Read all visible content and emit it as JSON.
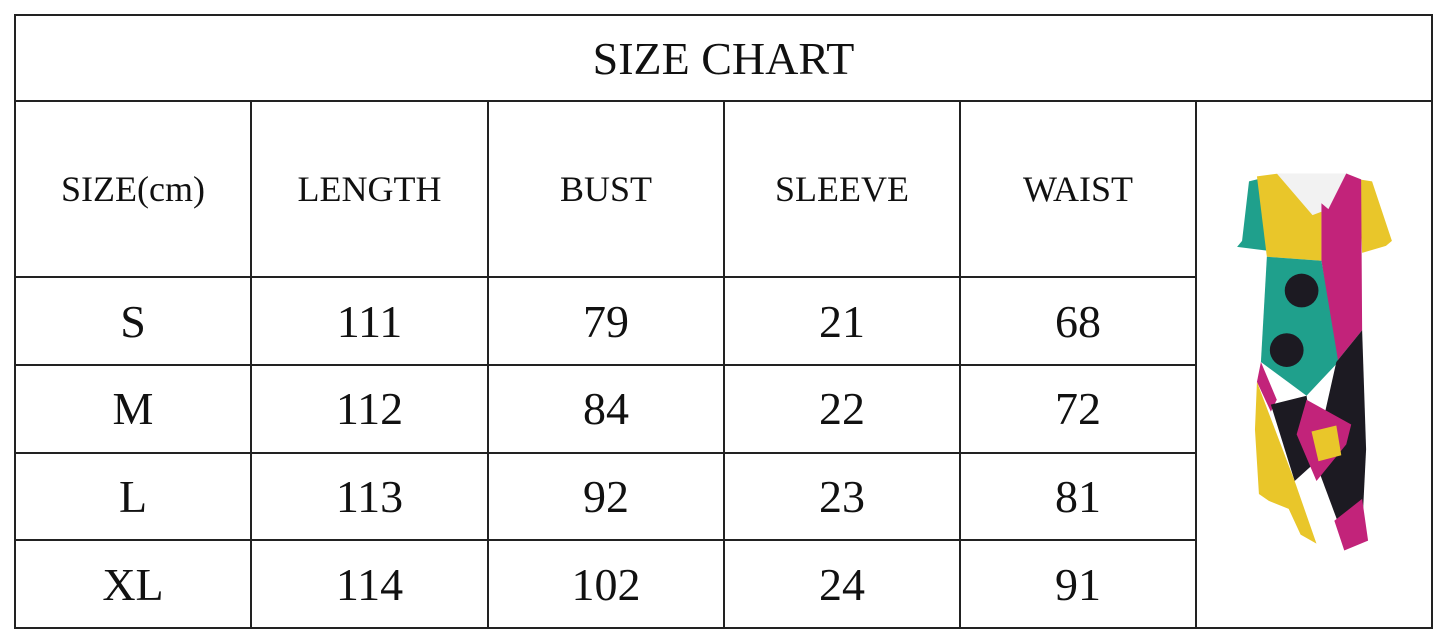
{
  "title": "SIZE CHART",
  "headers": [
    "SIZE(cm)",
    "LENGTH",
    "BUST",
    "SLEEVE",
    "WAIST"
  ],
  "rows": [
    [
      "S",
      "111",
      "79",
      "21",
      "68"
    ],
    [
      "M",
      "112",
      "84",
      "22",
      "72"
    ],
    [
      "L",
      "113",
      "92",
      "23",
      "81"
    ],
    [
      "XL",
      "114",
      "102",
      "24",
      "91"
    ]
  ],
  "product_image": "patchwork-dress",
  "colors": {
    "teal": "#1fa08c",
    "yellow": "#e9c62a",
    "magenta": "#c2237a",
    "black": "#1c1a22",
    "border": "#222222"
  }
}
